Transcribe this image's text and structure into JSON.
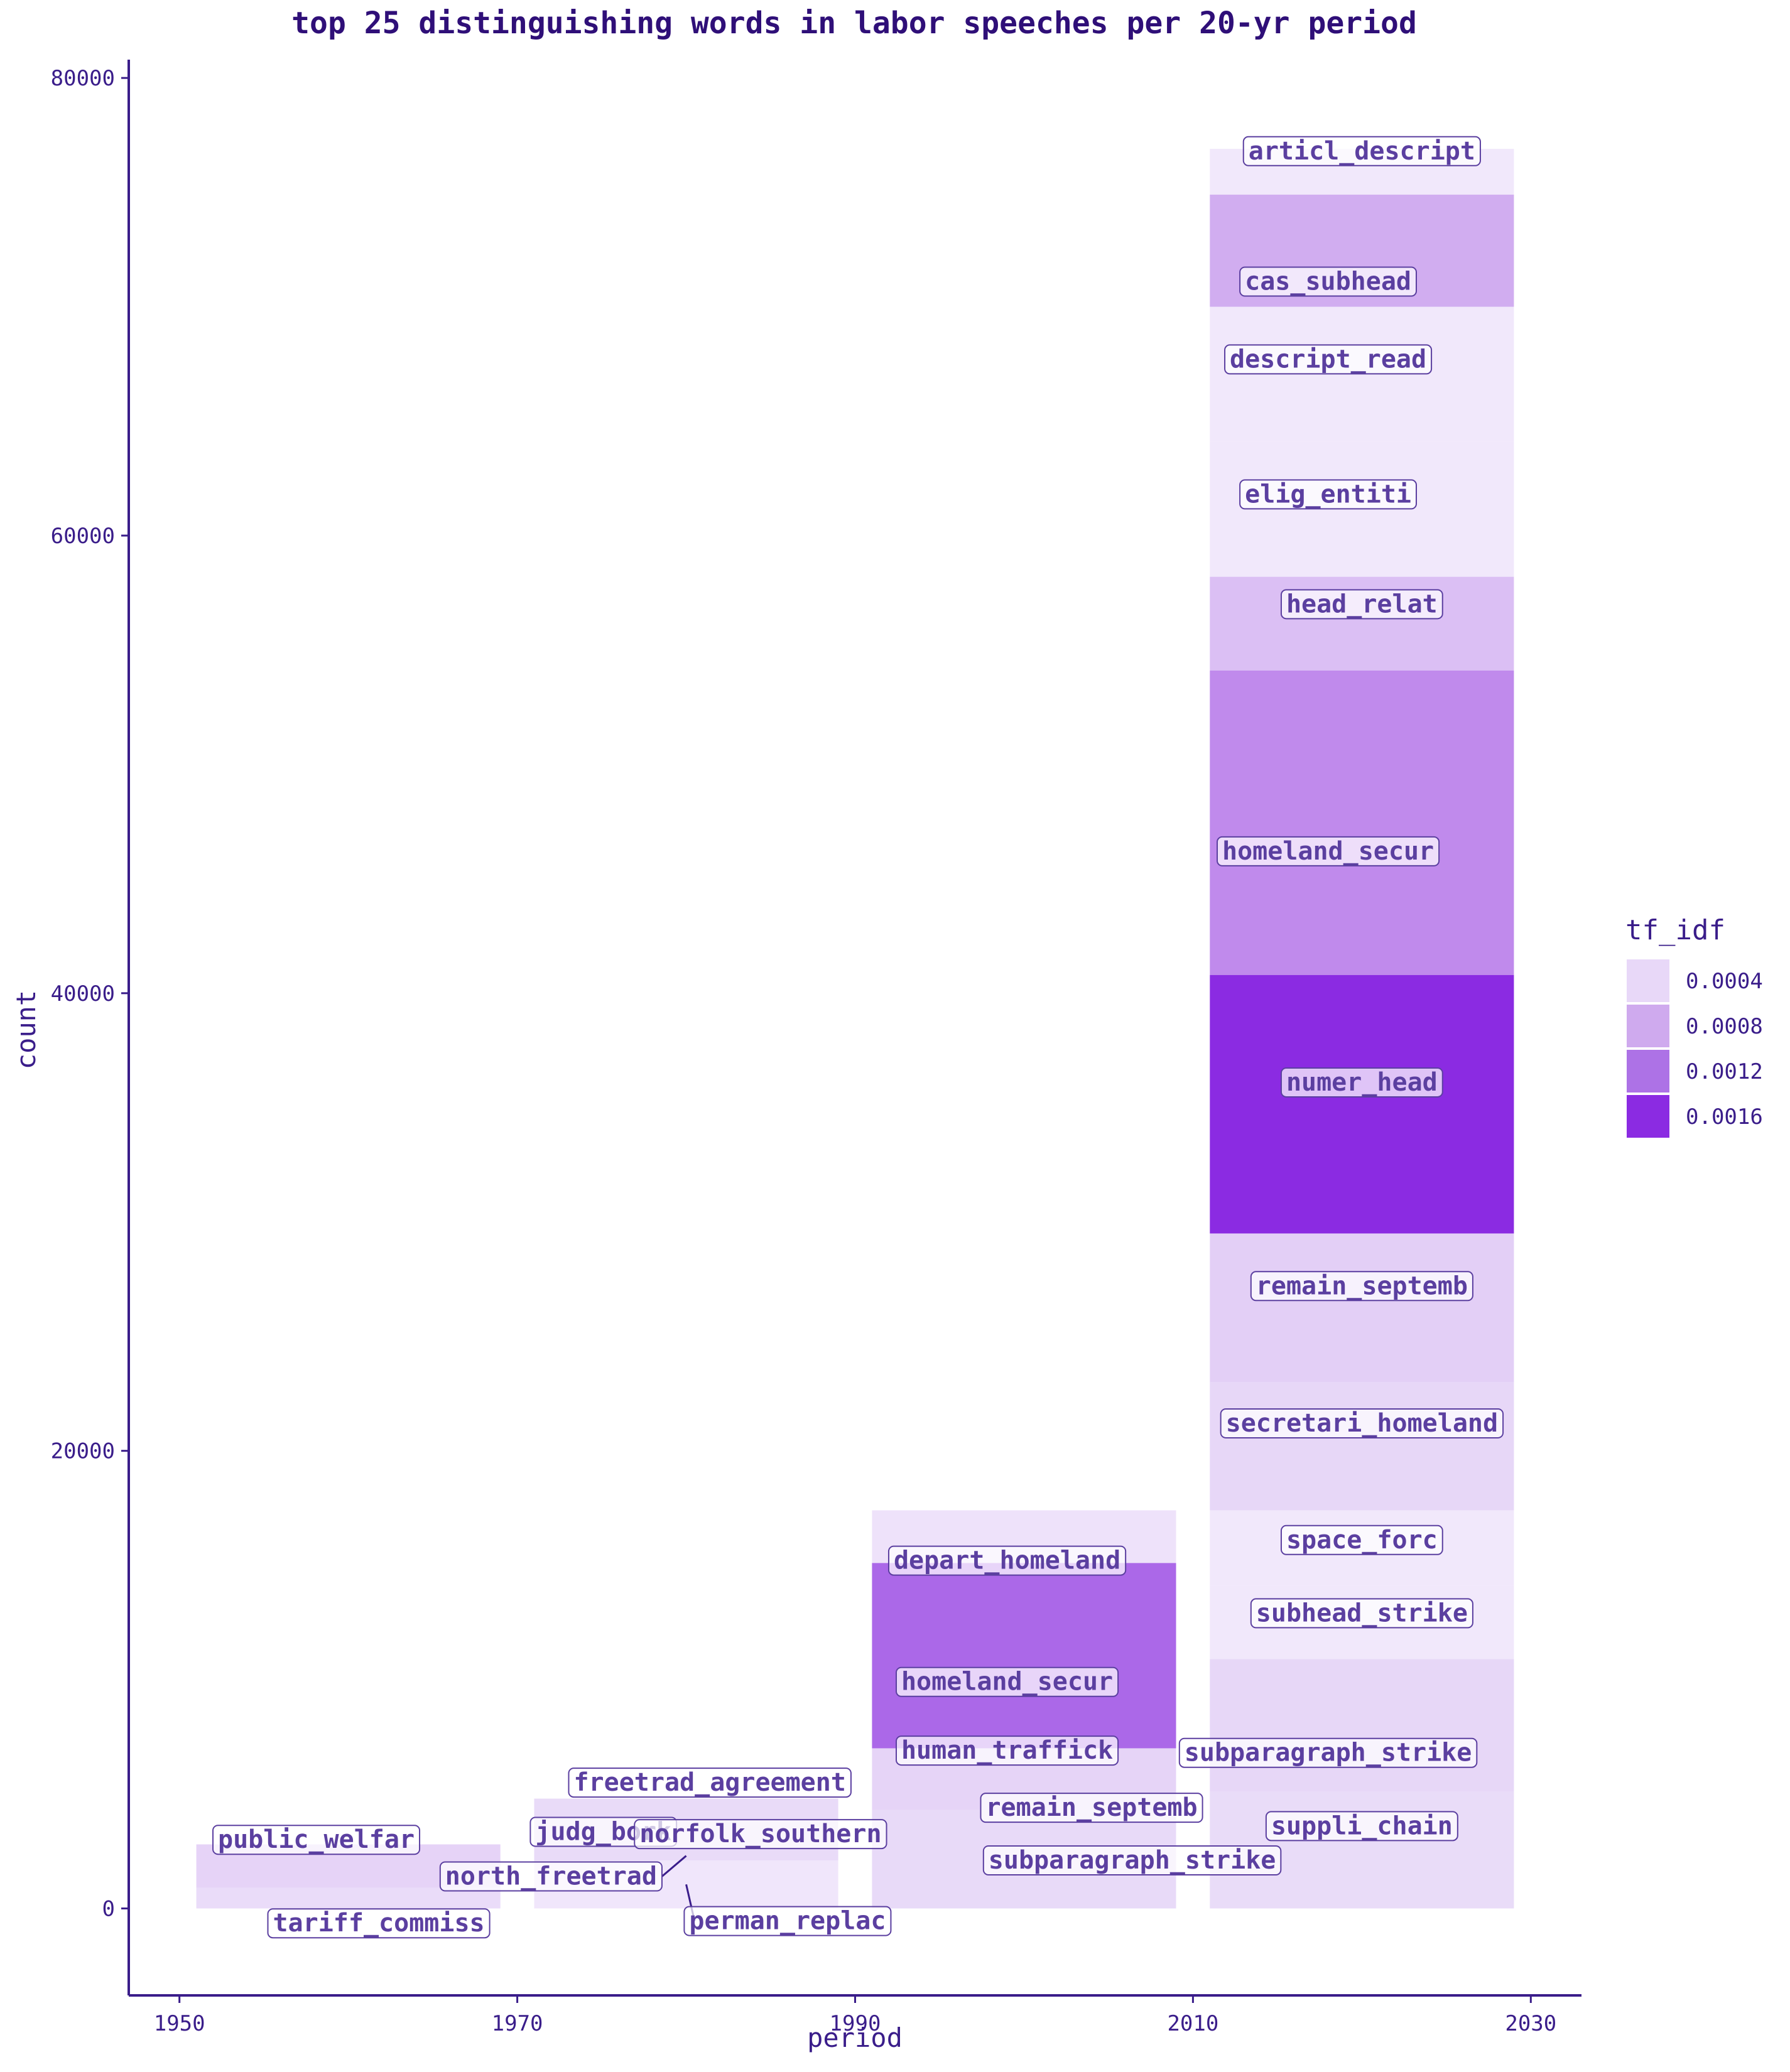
{
  "chart_data": {
    "type": "bar",
    "title": "top 25 distinguishing words in labor speeches per 20-yr period",
    "xlabel": "period",
    "ylabel": "count",
    "xlim": [
      1947,
      2033
    ],
    "ylim": [
      -3800,
      80800
    ],
    "x_ticks": [
      1950,
      1970,
      1990,
      2010,
      2030
    ],
    "y_ticks": [
      0,
      20000,
      40000,
      60000,
      80000
    ],
    "x_tick_labels": [
      "1950",
      "1970",
      "1990",
      "2010",
      "2030"
    ],
    "y_tick_labels": [
      "0",
      "20000",
      "40000",
      "60000",
      "80000"
    ],
    "bar_span_years": 18,
    "grid": false,
    "legend": {
      "title": "tf_idf",
      "position": "right",
      "entries": [
        {
          "label": "0.0004",
          "color": "#e8d8f8"
        },
        {
          "label": "0.0008",
          "color": "#cfaaee"
        },
        {
          "label": "0.0012",
          "color": "#ad72e6"
        },
        {
          "label": "0.0016",
          "color": "#8b2be2"
        }
      ]
    },
    "series": [
      {
        "period": 1960,
        "segments": [
          {
            "word": "tariff_commiss",
            "ymin": 0,
            "ymax": 900,
            "tf_idf": 0.00033,
            "color": "#eadcf9"
          },
          {
            "word": "public_welfar",
            "ymin": 900,
            "ymax": 2800,
            "tf_idf": 0.0004,
            "color": "#e6d3f7"
          }
        ]
      },
      {
        "period": 1980,
        "segments": [
          {
            "word": "perman_replac",
            "ymin": 0,
            "ymax": 2100,
            "tf_idf": 0.00026,
            "color": "#f0e6fb"
          },
          {
            "word": "north_freetrad",
            "ymin": 2100,
            "ymax": 2600,
            "tf_idf": 0.00034,
            "color": "#e9dbf8"
          },
          {
            "word": "norfolk_southern",
            "ymin": 2600,
            "ymax": 3200,
            "tf_idf": 0.00034,
            "color": "#e9dbf8"
          },
          {
            "word": "judg_bork",
            "ymin": 3200,
            "ymax": 3800,
            "tf_idf": 0.00034,
            "color": "#e9dbf8"
          },
          {
            "word": "freetrad_agreement",
            "ymin": 3800,
            "ymax": 4800,
            "tf_idf": 0.00034,
            "color": "#e9dbf8"
          }
        ]
      },
      {
        "period": 2000,
        "segments": [
          {
            "word": "subparagraph_strike",
            "ymin": 0,
            "ymax": 2100,
            "tf_idf": 0.00036,
            "color": "#e8daf8"
          },
          {
            "word": "remain_septemb",
            "ymin": 2100,
            "ymax": 4300,
            "tf_idf": 0.00036,
            "color": "#e8daf8"
          },
          {
            "word": "human_traffick",
            "ymin": 4300,
            "ymax": 7000,
            "tf_idf": 0.00042,
            "color": "#e6d4f7"
          },
          {
            "word": "homeland_secur",
            "ymin": 7000,
            "ymax": 15100,
            "tf_idf": 0.00125,
            "color": "#ab68e8"
          },
          {
            "word": "depart_homeland",
            "ymin": 15100,
            "ymax": 17400,
            "tf_idf": 0.0003,
            "color": "#eee2fa"
          }
        ]
      },
      {
        "period": 2020,
        "segments": [
          {
            "word": "suppli_chain",
            "ymin": 0,
            "ymax": 5100,
            "tf_idf": 0.00035,
            "color": "#e9dcf8"
          },
          {
            "word": "subparagraph_strike",
            "ymin": 5100,
            "ymax": 10900,
            "tf_idf": 0.00039,
            "color": "#e7d7f7"
          },
          {
            "word": "subhead_strike",
            "ymin": 10900,
            "ymax": 14100,
            "tf_idf": 0.00026,
            "color": "#f1e8fb"
          },
          {
            "word": "space_forc",
            "ymin": 14100,
            "ymax": 17400,
            "tf_idf": 0.00026,
            "color": "#f1e8fb"
          },
          {
            "word": "secretari_homeland",
            "ymin": 17400,
            "ymax": 23000,
            "tf_idf": 0.00039,
            "color": "#e7d7f7"
          },
          {
            "word": "remain_septemb",
            "ymin": 23000,
            "ymax": 29500,
            "tf_idf": 0.00046,
            "color": "#e3cff6"
          },
          {
            "word": "numer_head",
            "ymin": 29500,
            "ymax": 40800,
            "tf_idf": 0.0017,
            "color": "#8b2be2"
          },
          {
            "word": "homeland_secur",
            "ymin": 40800,
            "ymax": 54100,
            "tf_idf": 0.0011,
            "color": "#c08aec"
          },
          {
            "word": "head_relat",
            "ymin": 54100,
            "ymax": 58200,
            "tf_idf": 0.00065,
            "color": "#dbbff4"
          },
          {
            "word": "elig_entiti",
            "ymin": 58200,
            "ymax": 64100,
            "tf_idf": 0.00026,
            "color": "#f1e8fb"
          },
          {
            "word": "descript_read",
            "ymin": 64100,
            "ymax": 70000,
            "tf_idf": 0.00026,
            "color": "#f1e8fb"
          },
          {
            "word": "cas_subhead",
            "ymin": 70000,
            "ymax": 74900,
            "tf_idf": 0.0008,
            "color": "#d1adf0"
          },
          {
            "word": "articl_descript",
            "ymin": 74900,
            "ymax": 76900,
            "tf_idf": 0.00026,
            "color": "#f1e8fb"
          }
        ]
      }
    ],
    "labels": [
      {
        "text": "public_welfar",
        "x": 1958.1,
        "y": 3000
      },
      {
        "text": "tariff_commiss",
        "x": 1961.8,
        "y": -650
      },
      {
        "text": "freetrad_agreement",
        "x": 1981.4,
        "y": 5500
      },
      {
        "text": "judg_bork",
        "x": 1975.1,
        "y": 3350
      },
      {
        "text": "norfolk_southern",
        "x": 1984.4,
        "y": 3250
      },
      {
        "text": "north_freetrad",
        "x": 1972.0,
        "y": 1400,
        "point_x": 1980,
        "point_y": 2300
      },
      {
        "text": "perman_replac",
        "x": 1986.0,
        "y": -550,
        "point_x": 1980,
        "point_y": 1050
      },
      {
        "text": "depart_homeland",
        "x": 1999.0,
        "y": 15200
      },
      {
        "text": "homeland_secur",
        "x": 1999.0,
        "y": 9900
      },
      {
        "text": "human_traffick",
        "x": 1999.0,
        "y": 6900
      },
      {
        "text": "remain_septemb",
        "x": 2004.0,
        "y": 4400
      },
      {
        "text": "subparagraph_strike",
        "x": 2006.4,
        "y": 2100
      },
      {
        "text": "articl_descript",
        "x": 2020.0,
        "y": 76800
      },
      {
        "text": "cas_subhead",
        "x": 2018.0,
        "y": 71100
      },
      {
        "text": "descript_read",
        "x": 2018.0,
        "y": 67700
      },
      {
        "text": "elig_entiti",
        "x": 2018.0,
        "y": 61800
      },
      {
        "text": "head_relat",
        "x": 2020.0,
        "y": 57000
      },
      {
        "text": "homeland_secur",
        "x": 2018.0,
        "y": 46200
      },
      {
        "text": "numer_head",
        "x": 2020.0,
        "y": 36100
      },
      {
        "text": "remain_septemb",
        "x": 2020.0,
        "y": 27200
      },
      {
        "text": "secretari_homeland",
        "x": 2020.0,
        "y": 21200
      },
      {
        "text": "space_forc",
        "x": 2020.0,
        "y": 16100
      },
      {
        "text": "subhead_strike",
        "x": 2020.0,
        "y": 12900
      },
      {
        "text": "subparagraph_strike",
        "x": 2018.0,
        "y": 6800
      },
      {
        "text": "suppli_chain",
        "x": 2020.0,
        "y": 3600
      }
    ]
  }
}
